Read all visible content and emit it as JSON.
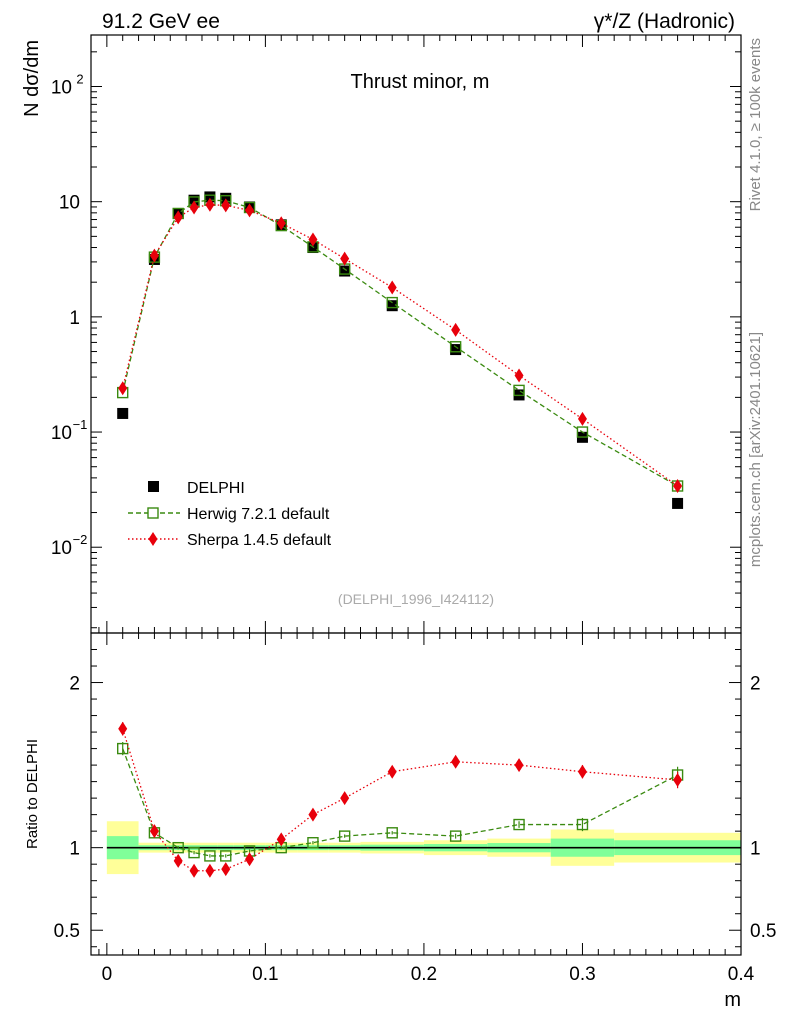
{
  "header": {
    "left": "91.2 GeV ee",
    "right": "γ*/Z (Hadronic)"
  },
  "side_text": {
    "top": "Rivet 4.1.0, ≥ 100k events",
    "bottom": "mcplots.cern.ch [arXiv:2401.10621]"
  },
  "chart_data": [
    {
      "type": "scatter",
      "title": "Thrust minor, m",
      "ylabel": "N  dσ/dm",
      "yscale": "log",
      "ylim": [
        0.0018,
        280
      ],
      "xlim": [
        -0.01,
        0.4
      ],
      "watermark": "(DELPHI_1996_I424112)",
      "y_ticks": [
        {
          "value": 0.01,
          "base": "10",
          "exp": "−2"
        },
        {
          "value": 0.1,
          "base": "10",
          "exp": "−1"
        },
        {
          "value": 1,
          "base": "1",
          "exp": ""
        },
        {
          "value": 10,
          "base": "10",
          "exp": ""
        },
        {
          "value": 100,
          "base": "10",
          "exp": "2"
        }
      ],
      "legend": [
        "DELPHI",
        "Herwig 7.2.1 default",
        "Sherpa 1.4.5 default"
      ],
      "series": [
        {
          "name": "DELPHI",
          "color": "#000000",
          "marker": "square",
          "x": [
            0.01,
            0.03,
            0.045,
            0.055,
            0.065,
            0.075,
            0.09,
            0.11,
            0.13,
            0.15,
            0.18,
            0.22,
            0.26,
            0.3,
            0.36
          ],
          "y": [
            0.145,
            3.15,
            7.9,
            10.3,
            11.0,
            10.7,
            9.0,
            6.3,
            4.0,
            2.5,
            1.25,
            0.52,
            0.21,
            0.09,
            0.024
          ]
        },
        {
          "name": "Herwig 7.2.1 default",
          "color": "#3a8a10",
          "marker": "open-square",
          "x": [
            0.01,
            0.03,
            0.045,
            0.055,
            0.065,
            0.075,
            0.09,
            0.11,
            0.13,
            0.15,
            0.18,
            0.22,
            0.26,
            0.3,
            0.36
          ],
          "y": [
            0.22,
            3.3,
            7.9,
            9.95,
            10.3,
            10.2,
            8.9,
            6.2,
            4.05,
            2.6,
            1.33,
            0.55,
            0.23,
            0.1,
            0.034
          ]
        },
        {
          "name": "Sherpa 1.4.5 default",
          "color": "#e8000b",
          "marker": "diamond",
          "x": [
            0.01,
            0.03,
            0.045,
            0.055,
            0.065,
            0.075,
            0.09,
            0.11,
            0.13,
            0.15,
            0.18,
            0.22,
            0.26,
            0.3,
            0.36
          ],
          "y": [
            0.24,
            3.4,
            7.3,
            8.9,
            9.4,
            9.3,
            8.4,
            6.5,
            4.7,
            3.2,
            1.8,
            0.77,
            0.31,
            0.13,
            0.034
          ]
        }
      ]
    },
    {
      "type": "scatter",
      "ylabel": "Ratio to DELPHI",
      "xlabel": "m",
      "ylim": [
        0.35,
        2.3
      ],
      "xlim": [
        -0.01,
        0.4
      ],
      "x_ticks": [
        0,
        0.1,
        0.2,
        0.3,
        0.4
      ],
      "x_tick_labels": [
        "0",
        "0.1",
        "0.2",
        "0.3",
        "0.4"
      ],
      "y_ticks": [
        0.5,
        1,
        2
      ],
      "y_tick_labels": [
        "0.5",
        "1",
        "2"
      ],
      "bands": {
        "bin_edges": [
          0,
          0.02,
          0.04,
          0.05,
          0.06,
          0.07,
          0.08,
          0.1,
          0.12,
          0.14,
          0.16,
          0.2,
          0.24,
          0.28,
          0.32,
          0.4
        ],
        "yellow_half": [
          0.16,
          0.03,
          0.03,
          0.03,
          0.03,
          0.03,
          0.03,
          0.03,
          0.03,
          0.03,
          0.035,
          0.045,
          0.055,
          0.11,
          0.09
        ],
        "green_half": [
          0.07,
          0.015,
          0.015,
          0.015,
          0.015,
          0.015,
          0.015,
          0.015,
          0.015,
          0.015,
          0.018,
          0.022,
          0.028,
          0.055,
          0.045
        ]
      },
      "series": [
        {
          "name": "Herwig 7.2.1 default",
          "color": "#3a8a10",
          "marker": "open-square",
          "x": [
            0.01,
            0.03,
            0.045,
            0.055,
            0.065,
            0.075,
            0.09,
            0.11,
            0.13,
            0.15,
            0.18,
            0.22,
            0.26,
            0.3,
            0.36
          ],
          "y": [
            1.6,
            1.09,
            1.0,
            0.97,
            0.95,
            0.95,
            0.98,
            1.0,
            1.03,
            1.07,
            1.09,
            1.07,
            1.14,
            1.14,
            1.44
          ],
          "err": [
            0.04,
            0.02,
            0.01,
            0.01,
            0.01,
            0.01,
            0.01,
            0.01,
            0.01,
            0.01,
            0.01,
            0.015,
            0.02,
            0.04,
            0.05
          ]
        },
        {
          "name": "Sherpa 1.4.5 default",
          "color": "#e8000b",
          "marker": "diamond",
          "x": [
            0.01,
            0.03,
            0.045,
            0.055,
            0.065,
            0.075,
            0.09,
            0.11,
            0.13,
            0.15,
            0.18,
            0.22,
            0.26,
            0.3,
            0.36
          ],
          "y": [
            1.72,
            1.1,
            0.92,
            0.86,
            0.86,
            0.87,
            0.93,
            1.05,
            1.2,
            1.3,
            1.46,
            1.52,
            1.5,
            1.46,
            1.41
          ],
          "err": [
            0.04,
            0.02,
            0.01,
            0.01,
            0.01,
            0.01,
            0.01,
            0.01,
            0.01,
            0.01,
            0.01,
            0.015,
            0.02,
            0.04,
            0.05
          ]
        }
      ]
    }
  ]
}
